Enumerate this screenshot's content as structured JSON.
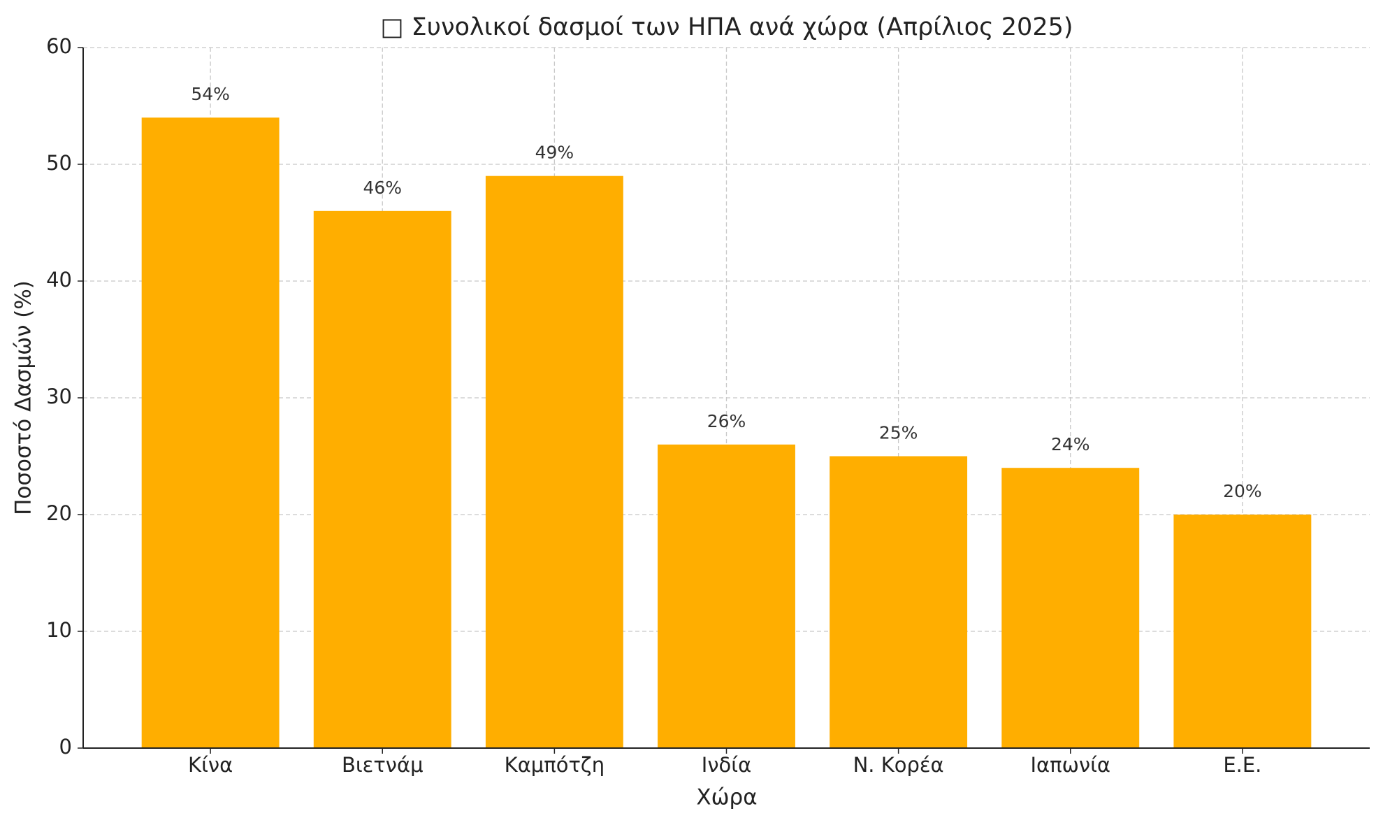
{
  "chart_data": {
    "type": "bar",
    "title": "□ Συνολικοί δασμοί των ΗΠΑ ανά χώρα (Απρίλιος 2025)",
    "x_label": "Χώρα",
    "y_label": "Ποσοστό Δασμών (%)",
    "categories": [
      "Κίνα",
      "Βιετνάμ",
      "Καμπότζη",
      "Ινδία",
      "Ν. Κορέα",
      "Ιαπωνία",
      "Ε.Ε."
    ],
    "values": [
      54,
      46,
      49,
      26,
      25,
      24,
      20
    ],
    "value_labels": [
      "54%",
      "46%",
      "49%",
      "26%",
      "25%",
      "24%",
      "20%"
    ],
    "color": "#ffae00",
    "ylim": [
      0,
      60
    ],
    "yticks": [
      0,
      10,
      20,
      30,
      40,
      50,
      60
    ],
    "grid": true
  }
}
